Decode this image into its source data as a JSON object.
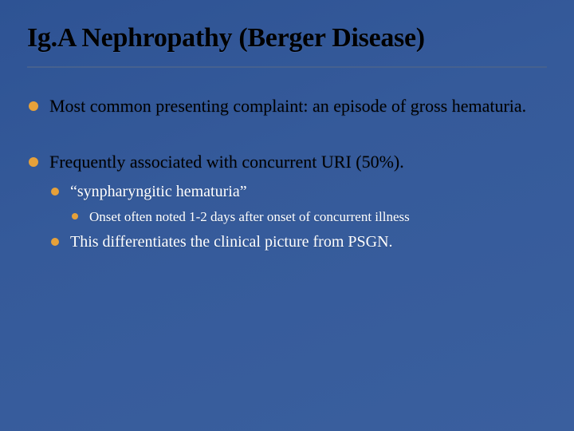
{
  "colors": {
    "background_gradient_start": "#2e5394",
    "background_gradient_end": "#3a5f9e",
    "title_color": "#000000",
    "title_underline": "#46618f",
    "bullet_lvl1": "#e6a13a",
    "bullet_lvl2": "#e6a13a",
    "bullet_lvl3": "#e6a13a",
    "text_lvl1": "#000000",
    "text_lvl2": "#ffffff",
    "text_lvl3": "#ffffff"
  },
  "typography": {
    "title_fontsize": 34,
    "lvl1_fontsize": 22,
    "lvl2_fontsize": 20,
    "lvl3_fontsize": 17,
    "font_family": "Georgia, serif"
  },
  "title": "Ig.A Nephropathy (Berger Disease)",
  "bullets": [
    {
      "text": "Most common presenting complaint: an episode of gross hematuria.",
      "children": []
    },
    {
      "text": "Frequently associated with concurrent URI (50%).",
      "children": [
        {
          "text": "“synpharyngitic hematuria”",
          "children": [
            {
              "text": "Onset often noted 1-2 days after onset of concurrent illness"
            }
          ]
        },
        {
          "text": "This differentiates the clinical picture from PSGN.",
          "children": []
        }
      ]
    }
  ]
}
